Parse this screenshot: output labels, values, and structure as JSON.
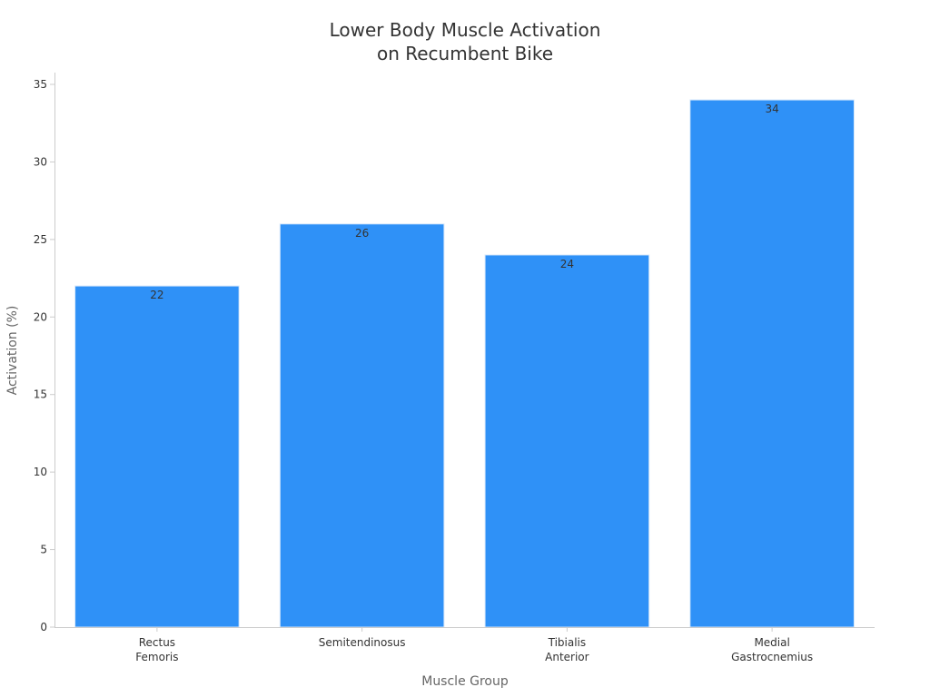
{
  "chart_data": {
    "type": "bar",
    "title_lines": [
      "Lower Body Muscle Activation",
      "on Recumbent Bike"
    ],
    "xlabel": "Muscle Group",
    "ylabel": "Activation (%)",
    "categories": [
      [
        "Rectus",
        "Femoris"
      ],
      [
        "Semitendinosus"
      ],
      [
        "Tibialis",
        "Anterior"
      ],
      [
        "Medial",
        "Gastrocnemius"
      ]
    ],
    "values": [
      22,
      26,
      24,
      34
    ],
    "ylim": [
      0,
      35
    ],
    "yticks": [
      0,
      5,
      10,
      15,
      20,
      25,
      30,
      35
    ],
    "grid": false,
    "legend": "none",
    "bar_color": "#2f91f7",
    "bar_edge_color": "#d6e8fb",
    "text_color": "#333333",
    "axis_label_color": "#666666",
    "axis_color": "#cccccc"
  }
}
